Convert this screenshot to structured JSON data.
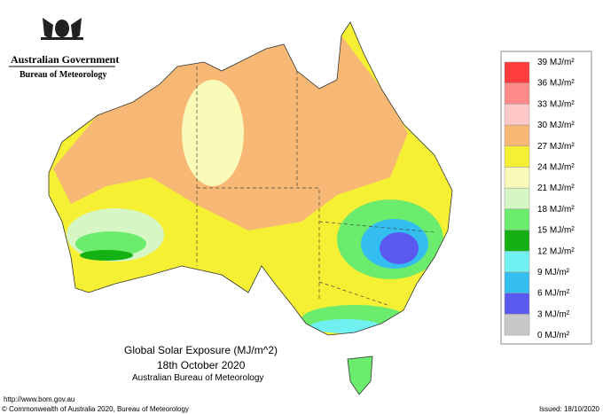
{
  "header": {
    "government": "Australian Government",
    "agency": "Bureau of Meteorology"
  },
  "map": {
    "title": "Global Solar Exposure (MJ/m^2)",
    "date": "18th October 2020",
    "source": "Australian Bureau of Meteorology"
  },
  "legend": [
    {
      "label": "39 MJ/m²",
      "color": "#ff3b3b"
    },
    {
      "label": "36 MJ/m²",
      "color": "#ff8a8a"
    },
    {
      "label": "33 MJ/m²",
      "color": "#ffc8c8"
    },
    {
      "label": "30 MJ/m²",
      "color": "#f6b874"
    },
    {
      "label": "27 MJ/m²",
      "color": "#f6f034"
    },
    {
      "label": "24 MJ/m²",
      "color": "#fafab8"
    },
    {
      "label": "21 MJ/m²",
      "color": "#d6f6c6"
    },
    {
      "label": "18 MJ/m²",
      "color": "#6cec6c"
    },
    {
      "label": "15 MJ/m²",
      "color": "#14b014"
    },
    {
      "label": "12 MJ/m²",
      "color": "#70f0f0"
    },
    {
      "label": "9 MJ/m²",
      "color": "#34bef0"
    },
    {
      "label": "6 MJ/m²",
      "color": "#5a5af0"
    },
    {
      "label": "3 MJ/m²",
      "color": "#c8c8c8"
    },
    {
      "label": "0 MJ/m²",
      "color": "#ffffff"
    }
  ],
  "footer": {
    "url": "http://www.bom.gov.au",
    "copyright": "© Commonwealth of Australia 2020, Bureau of Meteorology",
    "issued": "Issued: 18/10/2020"
  }
}
